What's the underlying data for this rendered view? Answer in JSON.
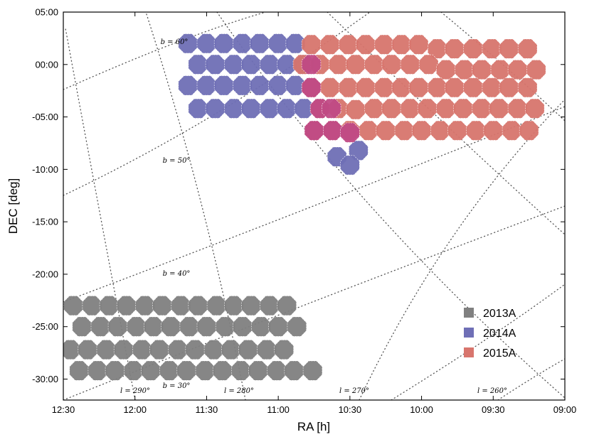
{
  "chart_data": {
    "type": "scatter",
    "title": "",
    "xlabel": "RA [h]",
    "ylabel": "DEC [deg]",
    "xlim": [
      12.5,
      9.0
    ],
    "ylim": [
      -32.0,
      5.0
    ],
    "x_ticks": [
      {
        "value": 12.5,
        "label": "12:30"
      },
      {
        "value": 12.0,
        "label": "12:00"
      },
      {
        "value": 11.5,
        "label": "11:30"
      },
      {
        "value": 11.0,
        "label": "11:00"
      },
      {
        "value": 10.5,
        "label": "10:30"
      },
      {
        "value": 10.0,
        "label": "10:00"
      },
      {
        "value": 9.5,
        "label": "09:30"
      },
      {
        "value": 9.0,
        "label": "09:00"
      }
    ],
    "y_ticks": [
      {
        "value": 5,
        "label": "05:00"
      },
      {
        "value": 0,
        "label": "00:00"
      },
      {
        "value": -5,
        "label": "-05:00"
      },
      {
        "value": -10,
        "label": "-10:00"
      },
      {
        "value": -15,
        "label": "-15:00"
      },
      {
        "value": -20,
        "label": "-20:00"
      },
      {
        "value": -25,
        "label": "-25:00"
      },
      {
        "value": -30,
        "label": "-30:00"
      }
    ],
    "grid_lines": {
      "b": [
        {
          "value": 60,
          "label": "b = 60°"
        },
        {
          "value": 50,
          "label": "b = 50°"
        },
        {
          "value": 40,
          "label": "b = 40°"
        },
        {
          "value": 30,
          "label": "b = 30°"
        }
      ],
      "l": [
        {
          "value": 290,
          "label": "l = 290°"
        },
        {
          "value": 280,
          "label": "l = 280°"
        },
        {
          "value": 270,
          "label": "l = 270°"
        },
        {
          "value": 260,
          "label": "l = 260°"
        }
      ]
    },
    "legend_position": "bottom-right",
    "series": [
      {
        "name": "2013A",
        "color": "#808080",
        "points": [
          [
            12.43,
            -23.0
          ],
          [
            12.3,
            -23.0
          ],
          [
            12.18,
            -23.0
          ],
          [
            12.06,
            -23.0
          ],
          [
            11.93,
            -23.0
          ],
          [
            11.81,
            -23.0
          ],
          [
            11.68,
            -23.0
          ],
          [
            11.56,
            -23.0
          ],
          [
            11.43,
            -23.0
          ],
          [
            11.31,
            -23.0
          ],
          [
            11.19,
            -23.0
          ],
          [
            11.06,
            -23.0
          ],
          [
            10.94,
            -23.0
          ],
          [
            12.37,
            -25.0
          ],
          [
            12.24,
            -25.0
          ],
          [
            12.12,
            -25.0
          ],
          [
            11.99,
            -25.0
          ],
          [
            11.87,
            -25.0
          ],
          [
            11.75,
            -25.0
          ],
          [
            11.62,
            -25.0
          ],
          [
            11.5,
            -25.0
          ],
          [
            11.37,
            -25.0
          ],
          [
            11.25,
            -25.0
          ],
          [
            11.12,
            -25.0
          ],
          [
            11.0,
            -25.0
          ],
          [
            10.87,
            -25.0
          ],
          [
            12.45,
            -27.2
          ],
          [
            12.33,
            -27.2
          ],
          [
            12.2,
            -27.2
          ],
          [
            12.08,
            -27.2
          ],
          [
            11.95,
            -27.2
          ],
          [
            11.83,
            -27.2
          ],
          [
            11.7,
            -27.2
          ],
          [
            11.58,
            -27.2
          ],
          [
            11.45,
            -27.2
          ],
          [
            11.33,
            -27.2
          ],
          [
            11.21,
            -27.2
          ],
          [
            11.08,
            -27.2
          ],
          [
            10.96,
            -27.2
          ],
          [
            12.39,
            -29.2
          ],
          [
            12.26,
            -29.2
          ],
          [
            12.14,
            -29.2
          ],
          [
            12.01,
            -29.2
          ],
          [
            11.89,
            -29.2
          ],
          [
            11.76,
            -29.2
          ],
          [
            11.64,
            -29.2
          ],
          [
            11.51,
            -29.2
          ],
          [
            11.39,
            -29.2
          ],
          [
            11.26,
            -29.2
          ],
          [
            11.14,
            -29.2
          ],
          [
            11.01,
            -29.2
          ],
          [
            10.89,
            -29.2
          ],
          [
            10.76,
            -29.2
          ]
        ]
      },
      {
        "name": "2014A",
        "color": "#6f6fb6",
        "points": [
          [
            11.63,
            2.0
          ],
          [
            11.5,
            2.0
          ],
          [
            11.38,
            2.0
          ],
          [
            11.25,
            2.0
          ],
          [
            11.13,
            2.0
          ],
          [
            11.0,
            2.0
          ],
          [
            10.88,
            2.0
          ],
          [
            11.56,
            0.0
          ],
          [
            11.44,
            0.0
          ],
          [
            11.31,
            0.0
          ],
          [
            11.19,
            0.0
          ],
          [
            11.06,
            0.0
          ],
          [
            10.94,
            0.0
          ],
          [
            10.82,
            0.0
          ],
          [
            11.63,
            -2.0
          ],
          [
            11.5,
            -2.0
          ],
          [
            11.38,
            -2.0
          ],
          [
            11.25,
            -2.0
          ],
          [
            11.13,
            -2.0
          ],
          [
            11.0,
            -2.0
          ],
          [
            10.88,
            -2.0
          ],
          [
            11.56,
            -4.2
          ],
          [
            11.44,
            -4.2
          ],
          [
            11.31,
            -4.2
          ],
          [
            11.19,
            -4.2
          ],
          [
            11.06,
            -4.2
          ],
          [
            10.94,
            -4.2
          ],
          [
            10.82,
            -4.2
          ],
          [
            10.59,
            -8.8
          ],
          [
            10.44,
            -8.2
          ],
          [
            10.5,
            -9.6
          ]
        ]
      },
      {
        "name": "2015A",
        "color": "#d8756d",
        "points": [
          [
            10.77,
            1.9
          ],
          [
            10.64,
            1.9
          ],
          [
            10.51,
            1.9
          ],
          [
            10.39,
            1.9
          ],
          [
            10.26,
            1.9
          ],
          [
            10.14,
            1.9
          ],
          [
            10.02,
            1.9
          ],
          [
            9.89,
            1.5
          ],
          [
            9.77,
            1.5
          ],
          [
            9.64,
            1.5
          ],
          [
            9.51,
            1.5
          ],
          [
            9.39,
            1.5
          ],
          [
            9.26,
            1.5
          ],
          [
            10.83,
            0.0
          ],
          [
            10.71,
            0.0
          ],
          [
            10.58,
            0.0
          ],
          [
            10.46,
            0.0
          ],
          [
            10.33,
            0.0
          ],
          [
            10.21,
            0.0
          ],
          [
            10.08,
            0.0
          ],
          [
            9.95,
            0.0
          ],
          [
            9.83,
            -0.5
          ],
          [
            9.7,
            -0.5
          ],
          [
            9.58,
            -0.5
          ],
          [
            9.45,
            -0.5
          ],
          [
            9.33,
            -0.5
          ],
          [
            9.2,
            -0.5
          ],
          [
            10.77,
            -2.2
          ],
          [
            10.64,
            -2.2
          ],
          [
            10.51,
            -2.2
          ],
          [
            10.39,
            -2.2
          ],
          [
            10.26,
            -2.2
          ],
          [
            10.14,
            -2.2
          ],
          [
            10.02,
            -2.2
          ],
          [
            9.89,
            -2.2
          ],
          [
            9.77,
            -2.2
          ],
          [
            9.64,
            -2.2
          ],
          [
            9.51,
            -2.2
          ],
          [
            9.39,
            -2.2
          ],
          [
            9.26,
            -2.2
          ],
          [
            10.71,
            -4.2
          ],
          [
            10.58,
            -4.2
          ],
          [
            10.46,
            -4.3
          ],
          [
            10.33,
            -4.2
          ],
          [
            10.21,
            -4.2
          ],
          [
            10.08,
            -4.2
          ],
          [
            9.96,
            -4.2
          ],
          [
            9.83,
            -4.2
          ],
          [
            9.71,
            -4.2
          ],
          [
            9.58,
            -4.2
          ],
          [
            9.46,
            -4.2
          ],
          [
            9.33,
            -4.2
          ],
          [
            9.21,
            -4.2
          ],
          [
            10.75,
            -6.3
          ],
          [
            10.62,
            -6.3
          ],
          [
            10.5,
            -6.3
          ],
          [
            10.37,
            -6.3
          ],
          [
            10.25,
            -6.3
          ],
          [
            10.12,
            -6.3
          ],
          [
            10.0,
            -6.3
          ],
          [
            9.87,
            -6.3
          ],
          [
            9.75,
            -6.3
          ],
          [
            9.62,
            -6.3
          ],
          [
            9.5,
            -6.3
          ],
          [
            9.37,
            -6.3
          ],
          [
            9.25,
            -6.3
          ]
        ]
      }
    ],
    "overlap_color": "#c04a85",
    "overlap_points": [
      [
        10.77,
        0.0
      ],
      [
        10.77,
        -2.2
      ],
      [
        10.71,
        -4.2
      ],
      [
        10.63,
        -4.2
      ],
      [
        10.75,
        -6.3
      ],
      [
        10.62,
        -6.3
      ],
      [
        10.5,
        -6.5
      ]
    ]
  }
}
